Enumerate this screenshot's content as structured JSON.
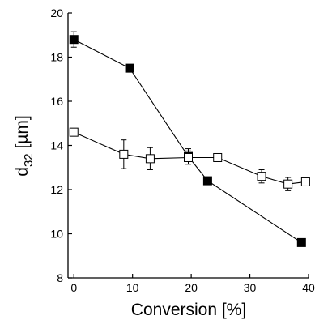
{
  "chart_data": {
    "type": "scatter",
    "title": "",
    "xlabel": "Conversion [%]",
    "ylabel": {
      "main": "d",
      "sub": "32",
      "unit": " [µm]"
    },
    "xlim": [
      -1,
      40
    ],
    "ylim": [
      8,
      20
    ],
    "x_ticks": [
      0,
      10,
      20,
      30,
      40
    ],
    "y_ticks": [
      8,
      10,
      12,
      14,
      16,
      18,
      20
    ],
    "x_tick_labels": [
      "0",
      "10",
      "20",
      "30",
      "40"
    ],
    "y_tick_labels": [
      "8",
      "10",
      "12",
      "14",
      "16",
      "18",
      "20"
    ],
    "grid": false,
    "series": [
      {
        "marker": "filled-square",
        "color": "#000000",
        "points": [
          {
            "x": 0,
            "y": 18.8,
            "err": 0.35
          },
          {
            "x": 9.5,
            "y": 17.5,
            "err": 0
          },
          {
            "x": 19.5,
            "y": 13.5,
            "err": 0.35
          },
          {
            "x": 22.8,
            "y": 12.4,
            "err": 0
          },
          {
            "x": 38.8,
            "y": 9.6,
            "err": 0
          }
        ]
      },
      {
        "marker": "open-square",
        "color": "#000000",
        "points": [
          {
            "x": 0,
            "y": 14.6,
            "err": 0
          },
          {
            "x": 8.5,
            "y": 13.6,
            "err": 0.65
          },
          {
            "x": 13,
            "y": 13.4,
            "err": 0.5
          },
          {
            "x": 19.5,
            "y": 13.45,
            "err": 0.3
          },
          {
            "x": 24.5,
            "y": 13.45,
            "err": 0
          },
          {
            "x": 32,
            "y": 12.6,
            "err": 0.3
          },
          {
            "x": 36.5,
            "y": 12.25,
            "err": 0.3
          },
          {
            "x": 39.5,
            "y": 12.35,
            "err": 0
          }
        ]
      }
    ]
  }
}
